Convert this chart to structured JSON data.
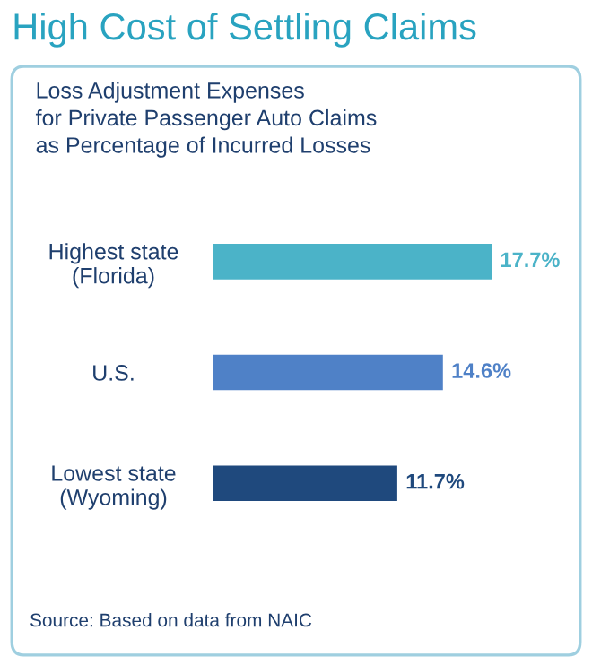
{
  "chart_data": {
    "type": "bar",
    "orientation": "horizontal",
    "title": "High Cost of Settling Claims",
    "subtitle": "Loss Adjustment Expenses\nfor Private Passenger Auto Claims\nas Percentage of Incurred Losses",
    "categories": [
      "Highest state\n(Florida)",
      "U.S.",
      "Lowest state\n(Wyoming)"
    ],
    "values": [
      17.7,
      14.6,
      11.7
    ],
    "colors": [
      "#4bb3c8",
      "#4f81c7",
      "#1f497d"
    ],
    "value_labels": [
      "17.7%",
      "14.6%",
      "11.7%"
    ],
    "tick_labels": "y",
    "grid": false,
    "legend": false,
    "annotations": [
      "Source: Based on data from NAIC"
    ]
  }
}
